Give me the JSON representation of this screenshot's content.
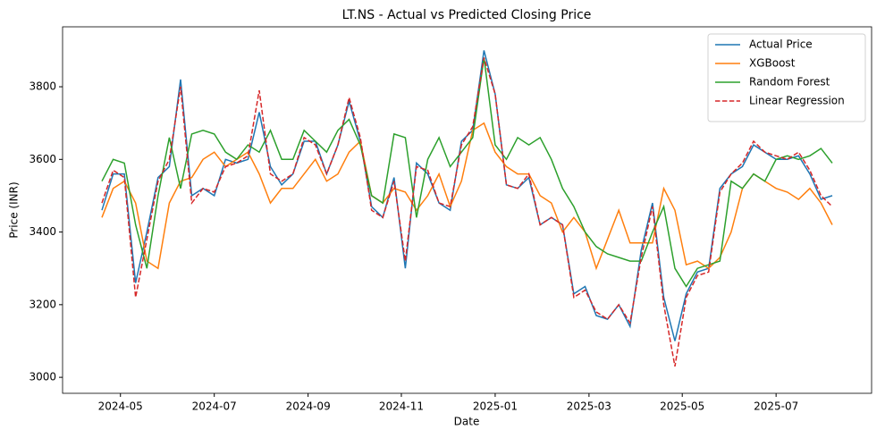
{
  "chart_data": {
    "type": "line",
    "title": "LT.NS - Actual vs Predicted Closing Price",
    "x_label": "Date",
    "y_label": "Price (INR)",
    "x": [
      2024.3,
      2024.32,
      2024.34,
      2024.36,
      2024.38,
      2024.4,
      2024.42,
      2024.44,
      2024.46,
      2024.48,
      2024.5,
      2024.52,
      2024.54,
      2024.56,
      2024.58,
      2024.6,
      2024.62,
      2024.64,
      2024.66,
      2024.68,
      2024.7,
      2024.72,
      2024.74,
      2024.76,
      2024.78,
      2024.8,
      2024.82,
      2024.84,
      2024.86,
      2024.88,
      2024.9,
      2024.92,
      2024.94,
      2024.96,
      2024.98,
      2025,
      2025.02,
      2025.04,
      2025.06,
      2025.08,
      2025.1,
      2025.12,
      2025.14,
      2025.16,
      2025.18,
      2025.2,
      2025.22,
      2025.24,
      2025.26,
      2025.28,
      2025.3,
      2025.32,
      2025.34,
      2025.36,
      2025.38,
      2025.4,
      2025.42,
      2025.44,
      2025.46,
      2025.48,
      2025.5,
      2025.52,
      2025.54,
      2025.56,
      2025.58,
      2025.6
    ],
    "series": [
      {
        "name": "Actual Price",
        "color": "#1f77b4",
        "linestyle": "solid",
        "values": [
          3460,
          3560,
          3560,
          3260,
          3400,
          3550,
          3580,
          3820,
          3500,
          3520,
          3500,
          3600,
          3590,
          3600,
          3730,
          3580,
          3530,
          3560,
          3650,
          3650,
          3560,
          3640,
          3760,
          3650,
          3470,
          3440,
          3550,
          3300,
          3590,
          3560,
          3480,
          3460,
          3650,
          3680,
          3900,
          3780,
          3530,
          3520,
          3550,
          3420,
          3440,
          3420,
          3230,
          3250,
          3170,
          3160,
          3200,
          3140,
          3350,
          3480,
          3220,
          3100,
          3230,
          3290,
          3300,
          3520,
          3560,
          3580,
          3640,
          3620,
          3600,
          3600,
          3610,
          3560,
          3490,
          3500
        ]
      },
      {
        "name": "XGBoost",
        "color": "#ff7f0e",
        "linestyle": "solid",
        "values": [
          3440,
          3520,
          3540,
          3480,
          3320,
          3300,
          3480,
          3540,
          3550,
          3600,
          3620,
          3580,
          3600,
          3620,
          3560,
          3480,
          3520,
          3520,
          3560,
          3600,
          3540,
          3560,
          3620,
          3650,
          3500,
          3480,
          3520,
          3510,
          3460,
          3500,
          3560,
          3470,
          3540,
          3680,
          3700,
          3620,
          3580,
          3560,
          3560,
          3500,
          3480,
          3400,
          3440,
          3400,
          3300,
          3380,
          3460,
          3370,
          3370,
          3370,
          3520,
          3460,
          3310,
          3320,
          3300,
          3330,
          3400,
          3520,
          3560,
          3540,
          3520,
          3510,
          3490,
          3520,
          3480,
          3420
        ]
      },
      {
        "name": "Random Forest",
        "color": "#2ca02c",
        "linestyle": "solid",
        "values": [
          3540,
          3600,
          3590,
          3420,
          3300,
          3500,
          3660,
          3520,
          3670,
          3680,
          3670,
          3620,
          3600,
          3640,
          3620,
          3680,
          3600,
          3600,
          3680,
          3650,
          3620,
          3680,
          3710,
          3640,
          3500,
          3480,
          3670,
          3660,
          3440,
          3600,
          3660,
          3580,
          3620,
          3660,
          3880,
          3640,
          3600,
          3660,
          3640,
          3660,
          3600,
          3520,
          3470,
          3400,
          3360,
          3340,
          3330,
          3320,
          3320,
          3400,
          3470,
          3300,
          3250,
          3300,
          3310,
          3320,
          3540,
          3520,
          3560,
          3540,
          3600,
          3610,
          3600,
          3610,
          3630,
          3590
        ]
      },
      {
        "name": "Linear Regression",
        "color": "#d62728",
        "linestyle": "dashed",
        "values": [
          3480,
          3570,
          3550,
          3220,
          3380,
          3540,
          3600,
          3800,
          3480,
          3520,
          3510,
          3580,
          3590,
          3610,
          3790,
          3560,
          3540,
          3560,
          3660,
          3640,
          3560,
          3640,
          3770,
          3660,
          3460,
          3440,
          3540,
          3320,
          3580,
          3570,
          3480,
          3470,
          3640,
          3690,
          3880,
          3780,
          3530,
          3520,
          3560,
          3420,
          3440,
          3420,
          3220,
          3240,
          3180,
          3160,
          3200,
          3150,
          3330,
          3470,
          3200,
          3030,
          3220,
          3280,
          3290,
          3510,
          3560,
          3590,
          3650,
          3620,
          3610,
          3600,
          3620,
          3570,
          3500,
          3470
        ]
      }
    ],
    "xlim": [
      2024.23,
      2025.67
    ],
    "xticks": [
      {
        "value": 2024.333,
        "label": "2024-05"
      },
      {
        "value": 2024.5,
        "label": "2024-07"
      },
      {
        "value": 2024.667,
        "label": "2024-09"
      },
      {
        "value": 2024.833,
        "label": "2024-11"
      },
      {
        "value": 2025,
        "label": "2025-01"
      },
      {
        "value": 2025.167,
        "label": "2025-03"
      },
      {
        "value": 2025.333,
        "label": "2025-05"
      },
      {
        "value": 2025.5,
        "label": "2025-07"
      }
    ],
    "ylim": [
      2956,
      3965
    ],
    "yticks": [
      3000,
      3200,
      3400,
      3600,
      3800
    ],
    "grid": false,
    "legend": "upper right"
  }
}
